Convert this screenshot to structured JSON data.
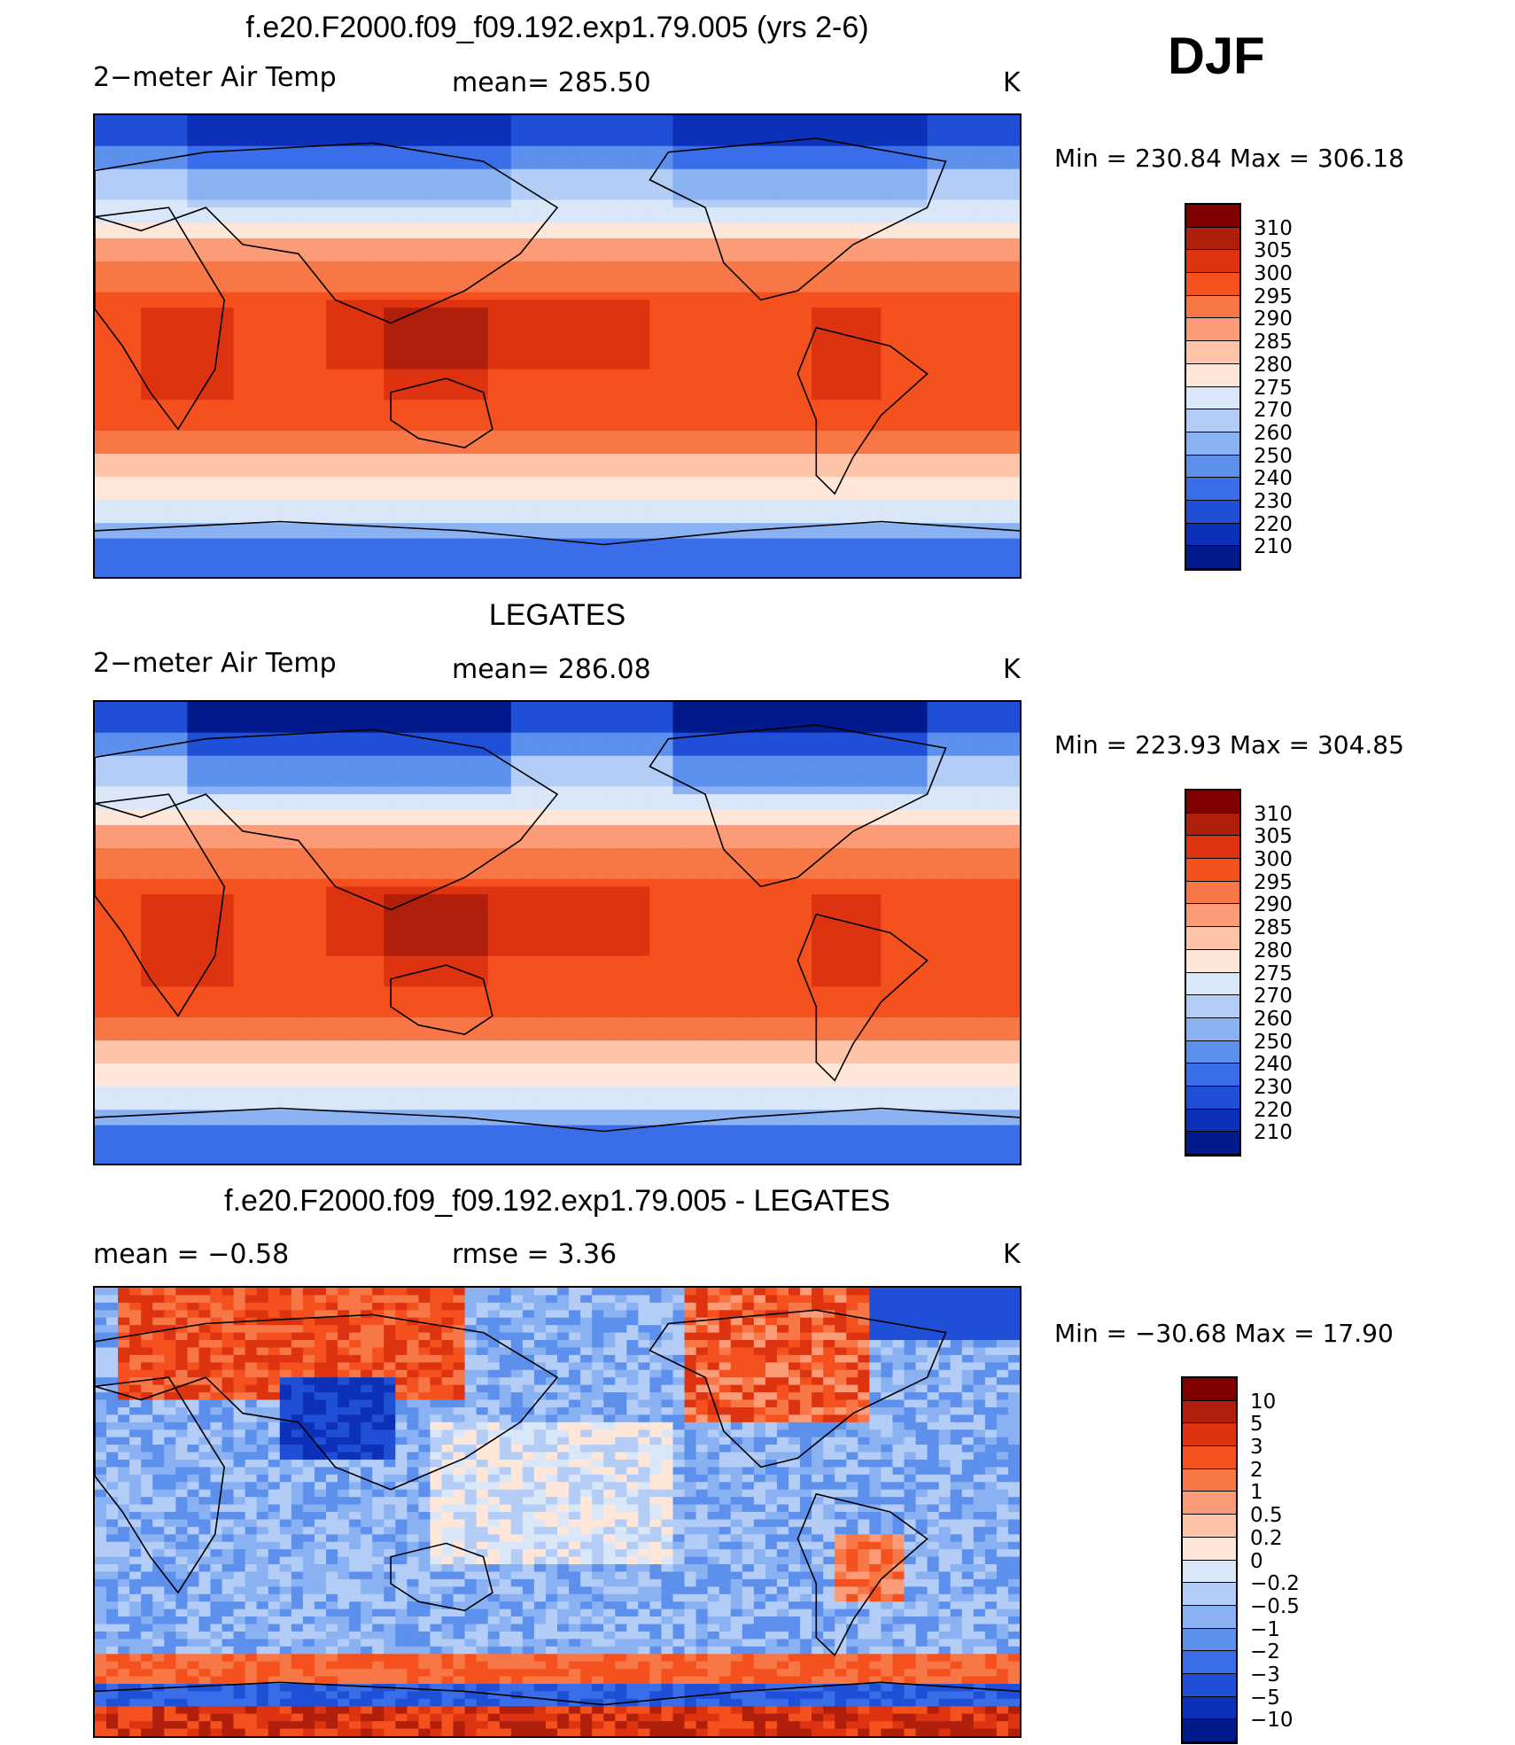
{
  "season": "DJF",
  "colors": {
    "temp_scale": [
      "#800000",
      "#b01e0c",
      "#dd3311",
      "#f4511e",
      "#f77746",
      "#fb9b78",
      "#fdc4a8",
      "#fee7d9",
      "#d9e7f9",
      "#b3cdf6",
      "#8ab2f2",
      "#5d90ec",
      "#3a6ee8",
      "#1f4fd6",
      "#0c30b7",
      "#001a8c"
    ],
    "diff_scale": [
      "#800000",
      "#b01e0c",
      "#dd3311",
      "#f4511e",
      "#f77746",
      "#fb9b78",
      "#fdc4a8",
      "#fee7d9",
      "#d9e7f9",
      "#b3cdf6",
      "#8ab2f2",
      "#5d90ec",
      "#3a6ee8",
      "#1f4fd6",
      "#0c30b7",
      "#001a8c"
    ]
  },
  "chart_data": [
    {
      "type": "heatmap",
      "title": "f.e20.F2000.f09_f09.192.exp1.79.005 (yrs 2-6)",
      "variable": "2−meter Air Temp",
      "mean_label": "mean=  285.50",
      "units": "K",
      "minmax_label": "Min  =  230.84  Max  =  306.18",
      "min": 230.84,
      "max": 306.18,
      "mean": 285.5,
      "levels": [
        "310",
        "305",
        "300",
        "295",
        "290",
        "285",
        "280",
        "275",
        "270",
        "260",
        "250",
        "240",
        "230",
        "220",
        "210"
      ]
    },
    {
      "type": "heatmap",
      "title": "LEGATES",
      "variable": "2−meter Air Temp",
      "mean_label": "mean=  286.08",
      "units": "K",
      "minmax_label": "Min  =  223.93  Max  =  304.85",
      "min": 223.93,
      "max": 304.85,
      "mean": 286.08,
      "levels": [
        "310",
        "305",
        "300",
        "295",
        "290",
        "285",
        "280",
        "275",
        "270",
        "260",
        "250",
        "240",
        "230",
        "220",
        "210"
      ]
    },
    {
      "type": "heatmap",
      "title": "f.e20.F2000.f09_f09.192.exp1.79.005 - LEGATES",
      "mean_label": "mean  =    −0.58",
      "rmse_label": "rmse  =     3.36",
      "units": "K",
      "minmax_label": "Min  =  −30.68  Max  =    17.90",
      "min": -30.68,
      "max": 17.9,
      "mean": -0.58,
      "rmse": 3.36,
      "levels": [
        "10",
        "5",
        "3",
        "2",
        "1",
        "0.5",
        "0.2",
        "0",
        "−0.2",
        "−0.5",
        "−1",
        "−2",
        "−3",
        "−5",
        "−10"
      ]
    }
  ]
}
